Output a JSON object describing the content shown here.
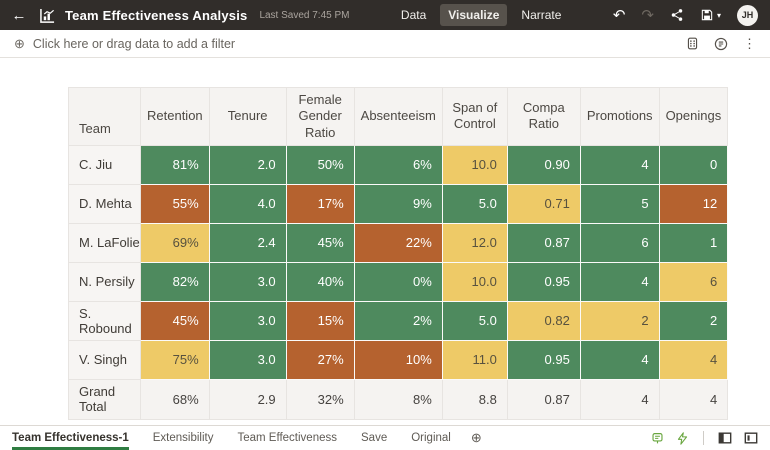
{
  "header": {
    "title": "Team Effectiveness Analysis",
    "last_saved": "Last Saved 7:45 PM",
    "tabs": [
      {
        "label": "Data",
        "active": false
      },
      {
        "label": "Visualize",
        "active": true
      },
      {
        "label": "Narrate",
        "active": false
      }
    ],
    "avatar_initials": "JH"
  },
  "icons": {
    "back": "←",
    "undo": "↶",
    "redo": "↷",
    "save_caret": "▾",
    "add_filter": "⊕",
    "kebab": "⋮",
    "add_canvas": "⊕"
  },
  "filter_bar": {
    "prompt": "Click here or drag data to add a filter"
  },
  "table": {
    "columns": [
      "Team",
      "Retention",
      "Tenure",
      "Female Gender Ratio",
      "Absenteeism",
      "Span of Control",
      "Compa Ratio",
      "Promotions",
      "Openings"
    ],
    "rows": [
      {
        "team": "C. Jiu",
        "cells": [
          {
            "v": "81%",
            "c": "green"
          },
          {
            "v": "2.0",
            "c": "green"
          },
          {
            "v": "50%",
            "c": "green"
          },
          {
            "v": "6%",
            "c": "green"
          },
          {
            "v": "10.0",
            "c": "yellow"
          },
          {
            "v": "0.90",
            "c": "green"
          },
          {
            "v": "4",
            "c": "green"
          },
          {
            "v": "0",
            "c": "green"
          }
        ]
      },
      {
        "team": "D. Mehta",
        "cells": [
          {
            "v": "55%",
            "c": "orange"
          },
          {
            "v": "4.0",
            "c": "green"
          },
          {
            "v": "17%",
            "c": "orange"
          },
          {
            "v": "9%",
            "c": "green"
          },
          {
            "v": "5.0",
            "c": "green"
          },
          {
            "v": "0.71",
            "c": "yellow"
          },
          {
            "v": "5",
            "c": "green"
          },
          {
            "v": "12",
            "c": "orange"
          }
        ]
      },
      {
        "team": "M. LaFolie",
        "cells": [
          {
            "v": "69%",
            "c": "yellow"
          },
          {
            "v": "2.4",
            "c": "green"
          },
          {
            "v": "45%",
            "c": "green"
          },
          {
            "v": "22%",
            "c": "orange"
          },
          {
            "v": "12.0",
            "c": "yellow"
          },
          {
            "v": "0.87",
            "c": "green"
          },
          {
            "v": "6",
            "c": "green"
          },
          {
            "v": "1",
            "c": "green"
          }
        ]
      },
      {
        "team": "N. Persily",
        "cells": [
          {
            "v": "82%",
            "c": "green"
          },
          {
            "v": "3.0",
            "c": "green"
          },
          {
            "v": "40%",
            "c": "green"
          },
          {
            "v": "0%",
            "c": "green"
          },
          {
            "v": "10.0",
            "c": "yellow"
          },
          {
            "v": "0.95",
            "c": "green"
          },
          {
            "v": "4",
            "c": "green"
          },
          {
            "v": "6",
            "c": "yellow"
          }
        ]
      },
      {
        "team": "S. Robound",
        "cells": [
          {
            "v": "45%",
            "c": "orange"
          },
          {
            "v": "3.0",
            "c": "green"
          },
          {
            "v": "15%",
            "c": "orange"
          },
          {
            "v": "2%",
            "c": "green"
          },
          {
            "v": "5.0",
            "c": "green"
          },
          {
            "v": "0.82",
            "c": "yellow"
          },
          {
            "v": "2",
            "c": "yellow"
          },
          {
            "v": "2",
            "c": "green"
          }
        ]
      },
      {
        "team": "V. Singh",
        "cells": [
          {
            "v": "75%",
            "c": "yellow"
          },
          {
            "v": "3.0",
            "c": "green"
          },
          {
            "v": "27%",
            "c": "orange"
          },
          {
            "v": "10%",
            "c": "orange"
          },
          {
            "v": "11.0",
            "c": "yellow"
          },
          {
            "v": "0.95",
            "c": "green"
          },
          {
            "v": "4",
            "c": "green"
          },
          {
            "v": "4",
            "c": "yellow"
          }
        ]
      }
    ],
    "grand_total": {
      "label": "Grand Total",
      "cells": [
        "68%",
        "2.9",
        "32%",
        "8%",
        "8.8",
        "0.87",
        "4",
        "4"
      ]
    }
  },
  "footer": {
    "tabs": [
      {
        "label": "Team Effectiveness-1",
        "active": true
      },
      {
        "label": "Extensibility",
        "active": false
      },
      {
        "label": "Team Effectiveness",
        "active": false
      },
      {
        "label": "Save",
        "active": false
      },
      {
        "label": "Original",
        "active": false
      }
    ]
  },
  "colors": {
    "green": "#4e8a5e",
    "orange": "#b5622f",
    "yellow": "#eeca67",
    "header_bg": "#312d2a",
    "active_tab_underline": "#2f7d42",
    "footer_icon_green": "#69a63f"
  }
}
